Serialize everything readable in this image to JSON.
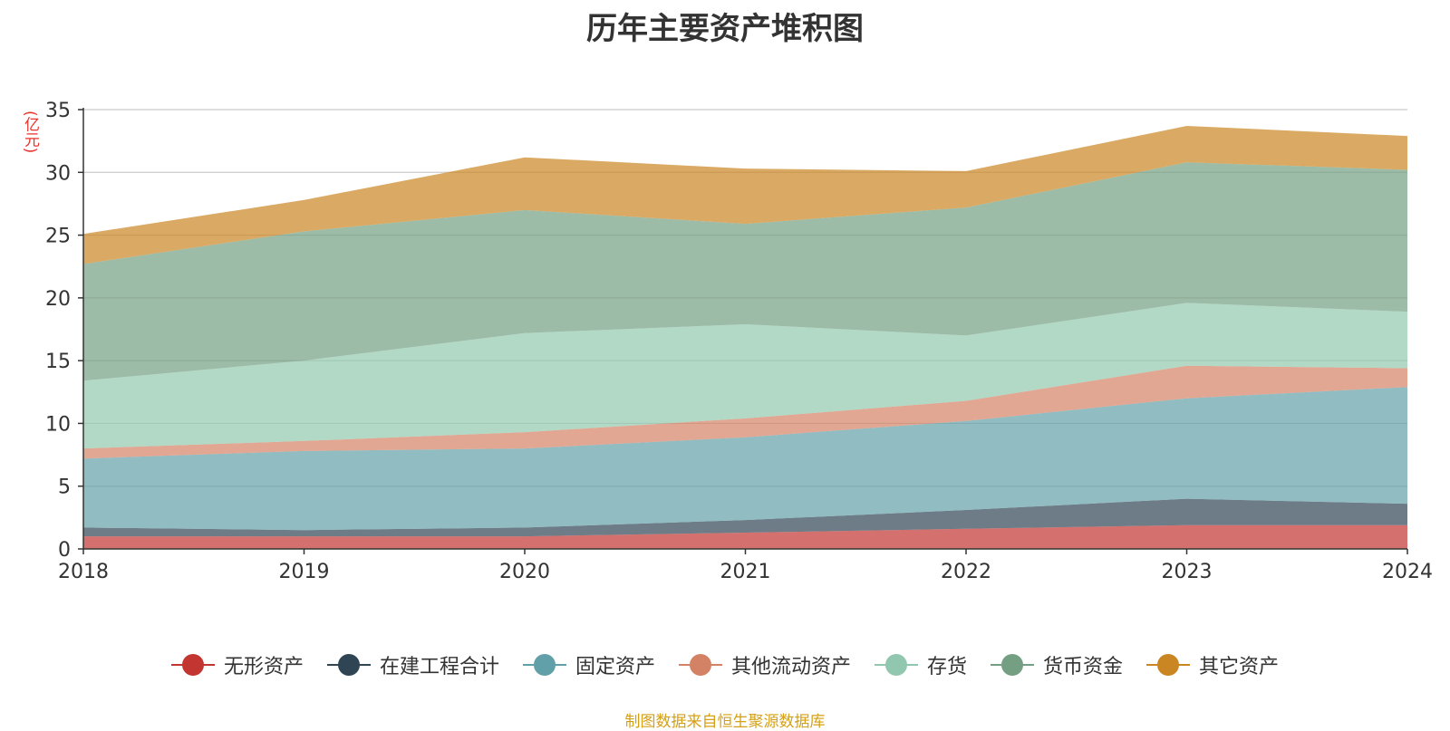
{
  "chart_data": {
    "type": "area",
    "stacked": true,
    "title": "历年主要资产堆积图",
    "y_unit": "(亿元)",
    "x": [
      "2018",
      "2019",
      "2020",
      "2021",
      "2022",
      "2023",
      "2024"
    ],
    "ylim": [
      0,
      35
    ],
    "y_ticks": [
      "0",
      "5",
      "10",
      "15",
      "20",
      "25",
      "30",
      "35"
    ],
    "grid": true,
    "legend_position": "bottom",
    "series": [
      {
        "name": "无形资产",
        "color": "#c23531",
        "values": [
          1.0,
          1.0,
          1.0,
          1.3,
          1.6,
          1.9,
          1.9
        ]
      },
      {
        "name": "在建工程合计",
        "color": "#2f4554",
        "values": [
          0.7,
          0.5,
          0.7,
          1.0,
          1.5,
          2.1,
          1.7
        ]
      },
      {
        "name": "固定资产",
        "color": "#61a0a8",
        "values": [
          5.5,
          6.3,
          6.3,
          6.6,
          7.1,
          8.0,
          9.3
        ]
      },
      {
        "name": "其他流动资产",
        "color": "#d48265",
        "values": [
          0.8,
          0.8,
          1.3,
          1.5,
          1.6,
          2.6,
          1.5
        ]
      },
      {
        "name": "存货",
        "color": "#91c7ae",
        "values": [
          5.4,
          6.4,
          7.9,
          7.5,
          5.2,
          5.0,
          4.5
        ]
      },
      {
        "name": "货币资金",
        "color": "#749f83",
        "values": [
          9.3,
          10.3,
          9.8,
          8.0,
          10.2,
          11.2,
          11.3
        ]
      },
      {
        "name": "其它资产",
        "color": "#ca8622",
        "values": [
          2.4,
          2.5,
          4.2,
          4.4,
          2.9,
          2.9,
          2.7
        ]
      }
    ]
  },
  "source_note": "制图数据来自恒生聚源数据库"
}
